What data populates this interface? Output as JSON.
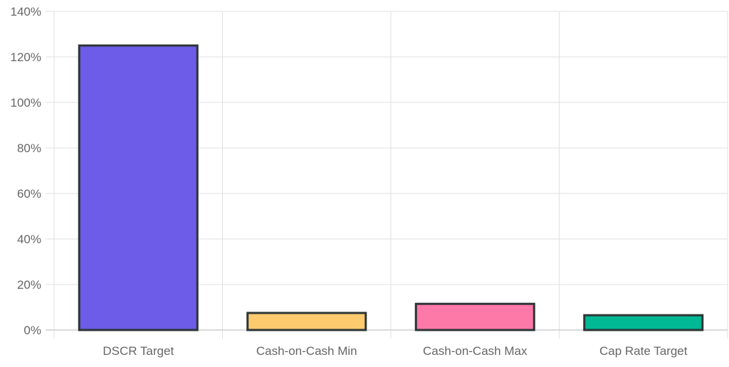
{
  "chart_data": {
    "type": "bar",
    "categories": [
      "DSCR Target",
      "Cash-on-Cash Min",
      "Cash-on-Cash Max",
      "Cap Rate Target"
    ],
    "values": [
      125,
      7.5,
      11.5,
      6.5
    ],
    "colors": [
      "#6c5ce7",
      "#fdcb6e",
      "#fd79a8",
      "#00b894"
    ],
    "border_color": "#2d3436",
    "ylim": [
      0,
      140
    ],
    "yticks": [
      "0%",
      "20%",
      "40%",
      "60%",
      "80%",
      "100%",
      "120%",
      "140%"
    ],
    "ytick_values": [
      0,
      20,
      40,
      60,
      80,
      100,
      120,
      140
    ],
    "grid": true,
    "legend": "none"
  }
}
